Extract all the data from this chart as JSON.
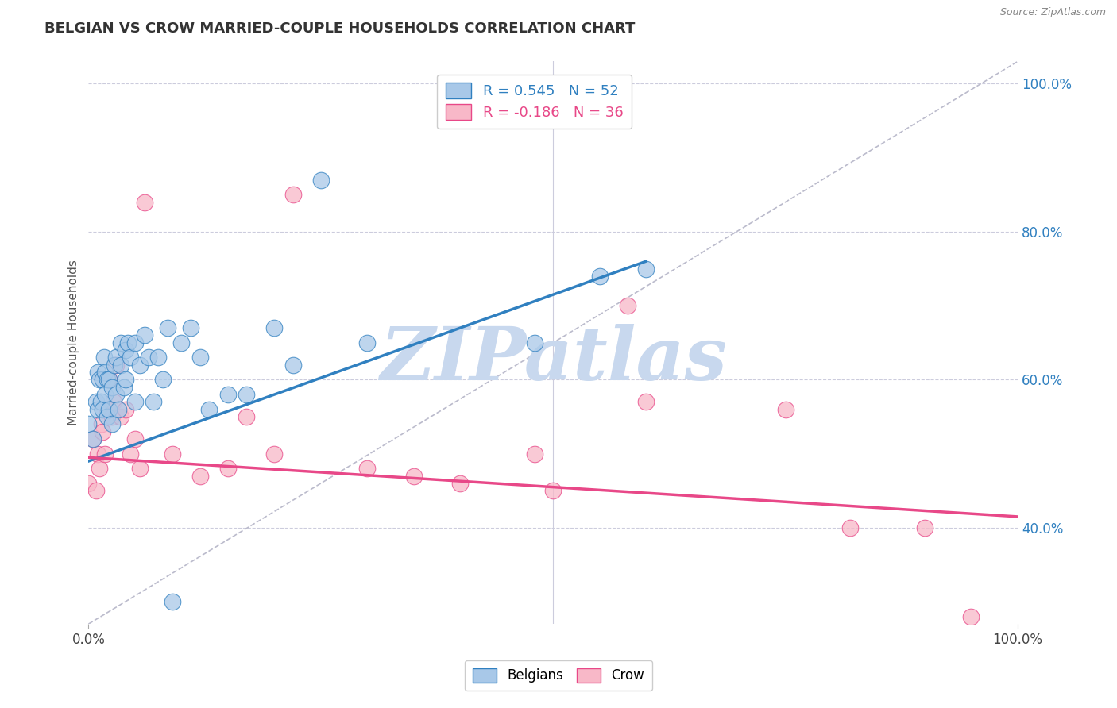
{
  "title": "BELGIAN VS CROW MARRIED-COUPLE HOUSEHOLDS CORRELATION CHART",
  "source_text": "Source: ZipAtlas.com",
  "ylabel": "Married-couple Households",
  "xlim": [
    0.0,
    1.0
  ],
  "ylim": [
    0.27,
    1.03
  ],
  "xticks": [
    0.0,
    1.0
  ],
  "xticklabels": [
    "0.0%",
    "100.0%"
  ],
  "yticks": [
    0.4,
    0.6,
    0.8,
    1.0
  ],
  "yticklabels": [
    "40.0%",
    "60.0%",
    "80.0%",
    "100.0%"
  ],
  "legend_blue_r": "R = 0.545",
  "legend_blue_n": "N = 52",
  "legend_pink_r": "R = -0.186",
  "legend_pink_n": "N = 36",
  "blue_color": "#a8c8e8",
  "pink_color": "#f8b8c8",
  "blue_line_color": "#3080c0",
  "pink_line_color": "#e84888",
  "ref_line_color": "#bbbbcc",
  "watermark_text": "ZIPatlas",
  "watermark_color": "#c8d8ee",
  "background_color": "#ffffff",
  "grid_color": "#ccccdd",
  "title_color": "#333333",
  "blue_scatter_x": [
    0.0,
    0.005,
    0.008,
    0.01,
    0.01,
    0.012,
    0.013,
    0.015,
    0.015,
    0.017,
    0.018,
    0.018,
    0.02,
    0.02,
    0.022,
    0.022,
    0.025,
    0.025,
    0.028,
    0.03,
    0.03,
    0.032,
    0.035,
    0.035,
    0.038,
    0.04,
    0.04,
    0.042,
    0.045,
    0.05,
    0.05,
    0.055,
    0.06,
    0.065,
    0.07,
    0.075,
    0.08,
    0.085,
    0.09,
    0.1,
    0.11,
    0.12,
    0.13,
    0.15,
    0.17,
    0.2,
    0.22,
    0.25,
    0.3,
    0.48,
    0.55,
    0.6
  ],
  "blue_scatter_y": [
    0.54,
    0.52,
    0.57,
    0.56,
    0.61,
    0.6,
    0.57,
    0.56,
    0.6,
    0.63,
    0.58,
    0.61,
    0.6,
    0.55,
    0.6,
    0.56,
    0.59,
    0.54,
    0.62,
    0.63,
    0.58,
    0.56,
    0.62,
    0.65,
    0.59,
    0.64,
    0.6,
    0.65,
    0.63,
    0.57,
    0.65,
    0.62,
    0.66,
    0.63,
    0.57,
    0.63,
    0.6,
    0.67,
    0.3,
    0.65,
    0.67,
    0.63,
    0.56,
    0.58,
    0.58,
    0.67,
    0.62,
    0.87,
    0.65,
    0.65,
    0.74,
    0.75
  ],
  "pink_scatter_x": [
    0.0,
    0.005,
    0.008,
    0.01,
    0.012,
    0.014,
    0.015,
    0.018,
    0.02,
    0.022,
    0.025,
    0.027,
    0.03,
    0.035,
    0.04,
    0.045,
    0.05,
    0.055,
    0.06,
    0.09,
    0.12,
    0.15,
    0.17,
    0.2,
    0.22,
    0.3,
    0.35,
    0.4,
    0.48,
    0.5,
    0.58,
    0.6,
    0.75,
    0.82,
    0.9,
    0.95
  ],
  "pink_scatter_y": [
    0.46,
    0.52,
    0.45,
    0.5,
    0.48,
    0.54,
    0.53,
    0.5,
    0.56,
    0.6,
    0.55,
    0.57,
    0.62,
    0.55,
    0.56,
    0.5,
    0.52,
    0.48,
    0.84,
    0.5,
    0.47,
    0.48,
    0.55,
    0.5,
    0.85,
    0.48,
    0.47,
    0.46,
    0.5,
    0.45,
    0.7,
    0.57,
    0.56,
    0.4,
    0.4,
    0.28
  ],
  "blue_trendline_x": [
    0.0,
    0.6
  ],
  "blue_trendline_y": [
    0.49,
    0.76
  ],
  "pink_trendline_x": [
    0.0,
    1.0
  ],
  "pink_trendline_y": [
    0.495,
    0.415
  ],
  "ref_line_x": [
    0.0,
    1.0
  ],
  "ref_line_y": [
    0.27,
    1.03
  ]
}
